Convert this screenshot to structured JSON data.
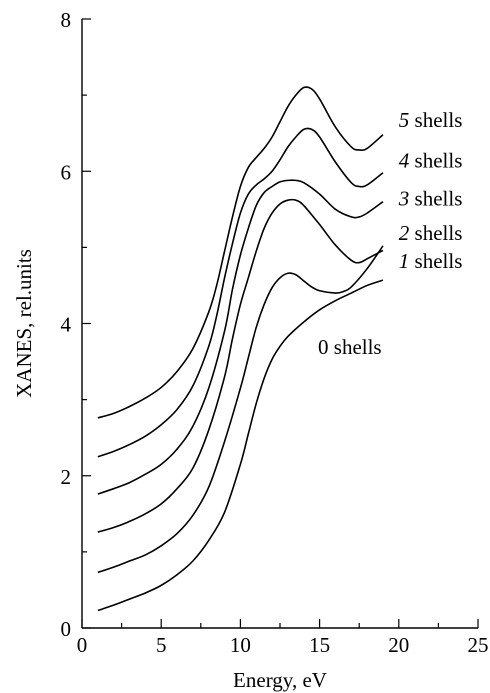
{
  "chart_data": {
    "type": "line",
    "title": "",
    "xlabel": "Energy, eV",
    "ylabel": "XANES, rel.units",
    "xlim": [
      0,
      25
    ],
    "ylim": [
      0,
      8
    ],
    "xticks": [
      0,
      5,
      10,
      15,
      20,
      25
    ],
    "yticks": [
      0,
      2,
      4,
      6,
      8
    ],
    "grid": false,
    "series": [
      {
        "label_num": "0",
        "label_word": "shells",
        "label_italic": false,
        "x": [
          1,
          2,
          3,
          4,
          5,
          6,
          7,
          8,
          9,
          10,
          10.5,
          11,
          11.5,
          12,
          12.5,
          13,
          14,
          15,
          16,
          17,
          18,
          19
        ],
        "y": [
          0.23,
          0.3,
          0.38,
          0.46,
          0.56,
          0.7,
          0.88,
          1.15,
          1.52,
          2.15,
          2.55,
          2.95,
          3.28,
          3.53,
          3.7,
          3.83,
          4.02,
          4.18,
          4.3,
          4.4,
          4.5,
          4.57
        ]
      },
      {
        "label_num": "1",
        "label_word": "shells",
        "label_italic": true,
        "x": [
          1,
          2,
          3,
          4,
          5,
          6,
          7,
          8,
          9,
          10,
          10.5,
          11,
          11.5,
          12,
          12.5,
          13,
          13.5,
          14,
          14.5,
          15,
          16,
          16.5,
          17,
          18,
          19
        ],
        "y": [
          0.73,
          0.8,
          0.88,
          0.96,
          1.08,
          1.24,
          1.48,
          1.85,
          2.45,
          3.15,
          3.55,
          3.95,
          4.25,
          4.47,
          4.6,
          4.66,
          4.64,
          4.56,
          4.48,
          4.43,
          4.4,
          4.42,
          4.48,
          4.72,
          5.02
        ]
      },
      {
        "label_num": "2",
        "label_word": "shells",
        "label_italic": true,
        "x": [
          1,
          2,
          3,
          4,
          5,
          6,
          7,
          8,
          9,
          9.5,
          10,
          10.5,
          11,
          11.5,
          12,
          12.5,
          13,
          13.5,
          14,
          15,
          16,
          17,
          17.5,
          18,
          19
        ],
        "y": [
          1.26,
          1.32,
          1.4,
          1.5,
          1.63,
          1.83,
          2.1,
          2.6,
          3.3,
          3.8,
          4.25,
          4.6,
          4.95,
          5.25,
          5.45,
          5.57,
          5.62,
          5.62,
          5.55,
          5.3,
          5.03,
          4.83,
          4.8,
          4.85,
          4.96
        ]
      },
      {
        "label_num": "3",
        "label_word": "shells",
        "label_italic": true,
        "x": [
          1,
          2,
          3,
          4,
          5,
          6,
          7,
          8,
          9,
          9.5,
          10,
          10.5,
          11,
          11.5,
          12,
          12.5,
          13,
          13.5,
          14,
          15,
          16,
          17,
          17.5,
          18,
          19
        ],
        "y": [
          1.76,
          1.83,
          1.91,
          2.02,
          2.15,
          2.35,
          2.65,
          3.15,
          3.9,
          4.45,
          4.9,
          5.25,
          5.55,
          5.72,
          5.8,
          5.86,
          5.88,
          5.88,
          5.85,
          5.7,
          5.5,
          5.4,
          5.4,
          5.45,
          5.6
        ]
      },
      {
        "label_num": "4",
        "label_word": "shells",
        "label_italic": true,
        "x": [
          1,
          2,
          3,
          4,
          5,
          6,
          7,
          8,
          8.5,
          9,
          9.5,
          10,
          10.5,
          11,
          11.5,
          12,
          12.5,
          13,
          13.5,
          14,
          14.5,
          15,
          16,
          17,
          17.5,
          18,
          19
        ],
        "y": [
          2.25,
          2.32,
          2.41,
          2.52,
          2.67,
          2.87,
          3.18,
          3.7,
          4.1,
          4.6,
          5.05,
          5.45,
          5.7,
          5.82,
          5.9,
          6.0,
          6.15,
          6.32,
          6.45,
          6.55,
          6.55,
          6.45,
          6.12,
          5.85,
          5.8,
          5.82,
          5.98
        ]
      },
      {
        "label_num": "5",
        "label_word": "shells",
        "label_italic": true,
        "x": [
          1,
          2,
          3,
          4,
          5,
          6,
          7,
          8,
          8.5,
          9,
          9.5,
          10,
          10.5,
          11,
          11.5,
          12,
          12.5,
          13,
          13.5,
          14,
          14.5,
          15,
          16,
          17,
          17.5,
          18,
          19
        ],
        "y": [
          2.76,
          2.82,
          2.91,
          3.02,
          3.16,
          3.37,
          3.67,
          4.15,
          4.5,
          4.95,
          5.4,
          5.8,
          6.05,
          6.18,
          6.3,
          6.45,
          6.65,
          6.85,
          7.0,
          7.1,
          7.08,
          6.95,
          6.58,
          6.32,
          6.28,
          6.3,
          6.48
        ]
      }
    ],
    "annotations": [
      {
        "series": 0,
        "num": "0",
        "word": "shells",
        "italic": false,
        "x": 14.9,
        "y": 3.6
      },
      {
        "series": 1,
        "num": "1",
        "word": "shells",
        "italic": true,
        "x": 20.0,
        "y": 4.73
      },
      {
        "series": 2,
        "num": "2",
        "word": "shells",
        "italic": true,
        "x": 20.0,
        "y": 5.1
      },
      {
        "series": 3,
        "num": "3",
        "word": "shells",
        "italic": true,
        "x": 20.0,
        "y": 5.55
      },
      {
        "series": 4,
        "num": "4",
        "word": "shells",
        "italic": true,
        "x": 20.0,
        "y": 6.05
      },
      {
        "series": 5,
        "num": "5",
        "word": "shells",
        "italic": true,
        "x": 20.0,
        "y": 6.58
      }
    ]
  }
}
